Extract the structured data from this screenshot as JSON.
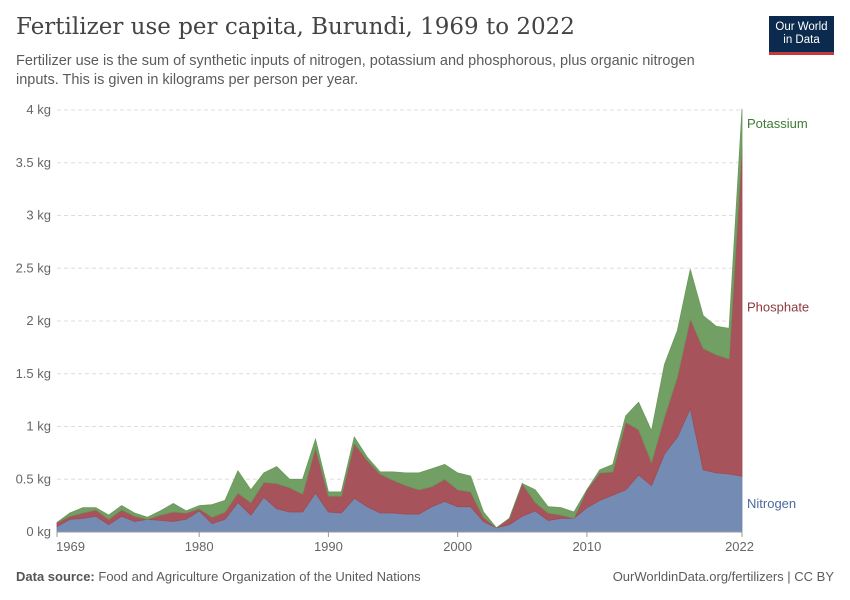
{
  "header": {
    "title": "Fertilizer use per capita, Burundi, 1969 to 2022",
    "subtitle": "Fertilizer use is the sum of synthetic inputs of nitrogen, potassium and phosphorous, plus organic nitrogen inputs. This is given in kilograms per person per year."
  },
  "logo": {
    "line1": "Our World",
    "line2": "in Data"
  },
  "footer": {
    "source_label": "Data source:",
    "source_text": "Food and Agriculture Organization of the United Nations",
    "url": "OurWorldinData.org/fertilizers | CC BY"
  },
  "chart_data": {
    "type": "area",
    "stacked": true,
    "x": [
      1969,
      1970,
      1971,
      1972,
      1973,
      1974,
      1975,
      1976,
      1977,
      1978,
      1979,
      1980,
      1981,
      1982,
      1983,
      1984,
      1985,
      1986,
      1987,
      1988,
      1989,
      1990,
      1991,
      1992,
      1993,
      1994,
      1995,
      1996,
      1997,
      1998,
      1999,
      2000,
      2001,
      2002,
      2003,
      2004,
      2005,
      2006,
      2007,
      2008,
      2009,
      2010,
      2011,
      2012,
      2013,
      2014,
      2015,
      2016,
      2017,
      2018,
      2019,
      2020,
      2021,
      2022
    ],
    "series": [
      {
        "name": "Nitrogen",
        "color": "#6d86b0",
        "values": [
          0.05,
          0.12,
          0.13,
          0.15,
          0.07,
          0.15,
          0.1,
          0.12,
          0.11,
          0.1,
          0.12,
          0.2,
          0.08,
          0.12,
          0.28,
          0.16,
          0.33,
          0.22,
          0.19,
          0.19,
          0.37,
          0.19,
          0.18,
          0.32,
          0.24,
          0.18,
          0.18,
          0.17,
          0.17,
          0.24,
          0.29,
          0.24,
          0.24,
          0.1,
          0.04,
          0.07,
          0.15,
          0.2,
          0.11,
          0.13,
          0.13,
          0.23,
          0.3,
          0.35,
          0.4,
          0.54,
          0.44,
          0.74,
          0.9,
          1.17,
          0.59,
          0.56,
          0.55,
          0.53
        ]
      },
      {
        "name": "Phosphate",
        "color": "#a24a52",
        "values": [
          0.04,
          0.03,
          0.05,
          0.06,
          0.05,
          0.06,
          0.05,
          0.0,
          0.05,
          0.09,
          0.06,
          0.02,
          0.06,
          0.07,
          0.09,
          0.12,
          0.14,
          0.24,
          0.23,
          0.17,
          0.43,
          0.15,
          0.16,
          0.52,
          0.44,
          0.37,
          0.31,
          0.27,
          0.23,
          0.19,
          0.21,
          0.16,
          0.14,
          0.04,
          0.0,
          0.06,
          0.31,
          0.08,
          0.07,
          0.03,
          0.0,
          0.17,
          0.26,
          0.22,
          0.64,
          0.43,
          0.22,
          0.35,
          0.57,
          0.85,
          1.15,
          1.12,
          1.09,
          3.12
        ]
      },
      {
        "name": "Potassium",
        "color": "#6a9a5c",
        "values": [
          0.0,
          0.03,
          0.05,
          0.02,
          0.04,
          0.04,
          0.03,
          0.02,
          0.04,
          0.08,
          0.02,
          0.03,
          0.12,
          0.11,
          0.21,
          0.12,
          0.09,
          0.16,
          0.08,
          0.14,
          0.08,
          0.04,
          0.04,
          0.06,
          0.03,
          0.02,
          0.08,
          0.12,
          0.16,
          0.17,
          0.14,
          0.16,
          0.15,
          0.05,
          0.0,
          0.0,
          0.0,
          0.12,
          0.06,
          0.07,
          0.06,
          0.0,
          0.03,
          0.07,
          0.06,
          0.26,
          0.3,
          0.5,
          0.44,
          0.47,
          0.31,
          0.27,
          0.29,
          0.36
        ]
      }
    ],
    "xlim": [
      1969,
      2022
    ],
    "ylim": [
      0,
      4
    ],
    "yticks": [
      0,
      0.5,
      1,
      1.5,
      2,
      2.5,
      3,
      3.5,
      4
    ],
    "ytick_labels": [
      "0 kg",
      "0.5 kg",
      "1 kg",
      "1.5 kg",
      "2 kg",
      "2.5 kg",
      "3 kg",
      "3.5 kg",
      "4 kg"
    ],
    "xticks": [
      1969,
      1980,
      1990,
      2000,
      2010,
      2022
    ],
    "xtick_labels": [
      "1969",
      "1980",
      "1990",
      "2000",
      "2010",
      "2022"
    ],
    "grid": true,
    "legend_placement": "right, inline labels at series end",
    "label_colors": {
      "Nitrogen": "#4c6a9c",
      "Phosphate": "#8b3a3f",
      "Potassium": "#3f7a36"
    }
  }
}
